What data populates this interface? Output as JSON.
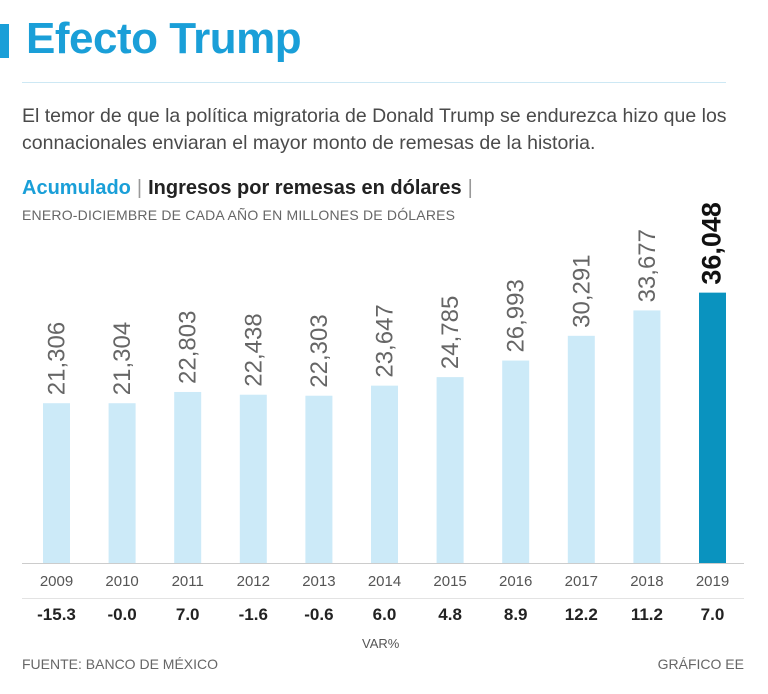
{
  "header": {
    "title": "Efecto Trump",
    "intro": "El temor de que la política migratoria de Donald Trump se endurezca hizo que los connacionales enviaran el mayor monto de remesas de la historia.",
    "subtitle_accent": "Acumulado",
    "subtitle_separator": "|",
    "subtitle_main": "Ingresos por remesas en dólares",
    "units": "ENERO-DICIEMBRE DE CADA AÑO EN MILLONES DE DÓLARES"
  },
  "chart_data": {
    "type": "bar",
    "title": "Ingresos por remesas en dólares",
    "ylabel": "Millones de dólares",
    "xlabel": "",
    "ylim": [
      0,
      37500
    ],
    "categories": [
      "2009",
      "2010",
      "2011",
      "2012",
      "2013",
      "2014",
      "2015",
      "2016",
      "2017",
      "2018",
      "2019"
    ],
    "values": [
      21306,
      21304,
      22803,
      22438,
      22303,
      23647,
      24785,
      26993,
      30291,
      33677,
      36048
    ],
    "value_labels": [
      "21,306",
      "21,304",
      "22,803",
      "22,438",
      "22,303",
      "23,647",
      "24,785",
      "26,993",
      "30,291",
      "33,677",
      "36,048"
    ],
    "highlight_index": 10,
    "variation_label": "VAR%",
    "variation": [
      "-15.3",
      "-0.0",
      "7.0",
      "-1.6",
      "-0.6",
      "6.0",
      "4.8",
      "8.9",
      "12.2",
      "11.2",
      "7.0"
    ],
    "colors": {
      "bar": "#cceaf8",
      "highlight": "#0a93bf",
      "axis": "#cccccc"
    }
  },
  "footer": {
    "source": "FUENTE: BANCO DE MÉXICO",
    "credit": "GRÁFICO EE"
  }
}
